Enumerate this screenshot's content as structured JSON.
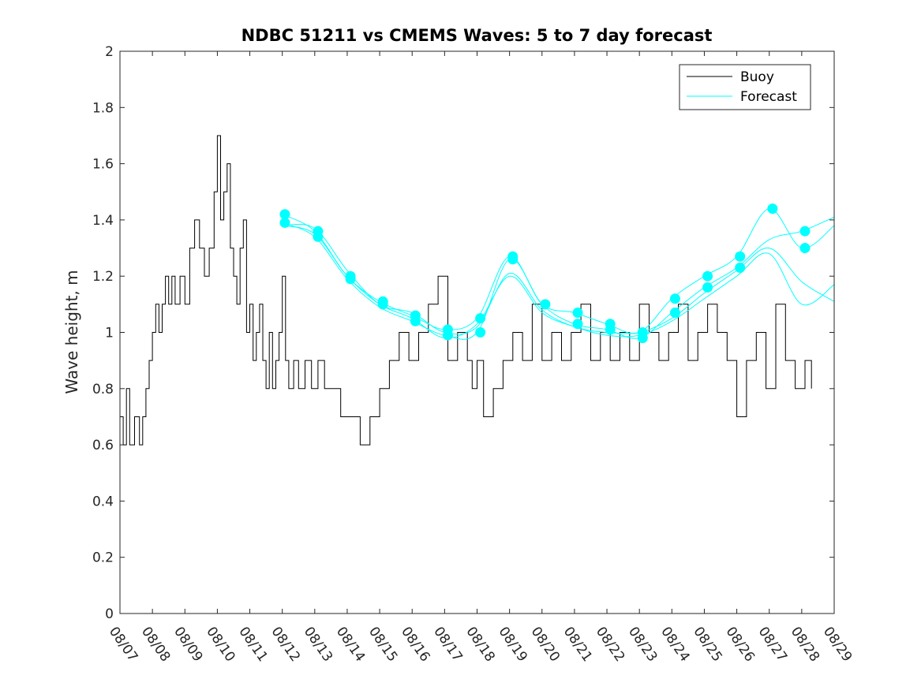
{
  "chart_data": {
    "type": "line",
    "title": "NDBC 51211 vs CMEMS Waves: 5 to 7 day forecast",
    "xlabel": "",
    "ylabel": "Wave height, m",
    "ylim": [
      0,
      2
    ],
    "xlim": [
      0,
      22
    ],
    "yticks": [
      0,
      0.2,
      0.4,
      0.6,
      0.8,
      1,
      1.2,
      1.4,
      1.6,
      1.8,
      2
    ],
    "ytick_labels": [
      "0",
      "0.2",
      "0.4",
      "0.6",
      "0.8",
      "1",
      "1.2",
      "1.4",
      "1.6",
      "1.8",
      "2"
    ],
    "xtick_labels": [
      "08/07",
      "08/08",
      "08/09",
      "08/10",
      "08/11",
      "08/12",
      "08/13",
      "08/14",
      "08/15",
      "08/16",
      "08/17",
      "08/18",
      "08/19",
      "08/20",
      "08/21",
      "08/22",
      "08/23",
      "08/24",
      "08/25",
      "08/26",
      "08/27",
      "08/28",
      "08/29"
    ],
    "legend": {
      "position": "top-right",
      "entries": [
        "Buoy",
        "Forecast"
      ]
    },
    "colors": {
      "buoy": "#000000",
      "forecast": "#00ffff"
    },
    "series": [
      {
        "name": "Buoy",
        "x": [
          0,
          0.1,
          0.2,
          0.3,
          0.45,
          0.6,
          0.7,
          0.8,
          0.9,
          1.0,
          1.1,
          1.2,
          1.3,
          1.4,
          1.5,
          1.6,
          1.7,
          1.85,
          2.0,
          2.15,
          2.3,
          2.45,
          2.6,
          2.75,
          2.9,
          3.0,
          3.1,
          3.2,
          3.3,
          3.4,
          3.5,
          3.6,
          3.7,
          3.8,
          3.9,
          4.0,
          4.1,
          4.2,
          4.3,
          4.4,
          4.5,
          4.6,
          4.7,
          4.8,
          4.9,
          5.0,
          5.1,
          5.2,
          5.35,
          5.5,
          5.7,
          5.9,
          6.1,
          6.3,
          6.5,
          6.8,
          7.1,
          7.4,
          7.7,
          8.0,
          8.3,
          8.6,
          8.9,
          9.2,
          9.5,
          9.8,
          10.1,
          10.4,
          10.7,
          10.85,
          11.0,
          11.2,
          11.5,
          11.8,
          12.1,
          12.4,
          12.7,
          13.0,
          13.3,
          13.6,
          13.9,
          14.2,
          14.5,
          14.8,
          15.1,
          15.4,
          15.7,
          16.0,
          16.3,
          16.6,
          16.9,
          17.2,
          17.5,
          17.8,
          18.1,
          18.4,
          18.7,
          19.0,
          19.3,
          19.6,
          19.9,
          20.2,
          20.5,
          20.8,
          21.1,
          21.3
        ],
        "values": [
          0.7,
          0.6,
          0.8,
          0.6,
          0.7,
          0.6,
          0.7,
          0.8,
          0.9,
          1.0,
          1.1,
          1.0,
          1.1,
          1.2,
          1.1,
          1.2,
          1.1,
          1.2,
          1.1,
          1.3,
          1.4,
          1.3,
          1.2,
          1.3,
          1.5,
          1.7,
          1.4,
          1.5,
          1.6,
          1.3,
          1.2,
          1.1,
          1.3,
          1.4,
          1.0,
          1.1,
          0.9,
          1.0,
          1.1,
          0.9,
          0.8,
          1.0,
          0.8,
          0.9,
          1.0,
          1.2,
          0.9,
          0.8,
          0.9,
          0.8,
          0.9,
          0.8,
          0.9,
          0.8,
          0.8,
          0.7,
          0.7,
          0.6,
          0.7,
          0.8,
          0.9,
          1.0,
          0.9,
          1.0,
          1.1,
          1.2,
          0.9,
          1.0,
          0.9,
          0.8,
          0.9,
          0.7,
          0.8,
          0.9,
          1.0,
          0.9,
          1.1,
          0.9,
          1.0,
          0.9,
          1.0,
          1.1,
          0.9,
          1.0,
          0.9,
          1.0,
          0.9,
          1.1,
          1.0,
          0.9,
          1.0,
          1.1,
          0.9,
          1.0,
          1.1,
          1.0,
          0.9,
          0.7,
          0.9,
          1.0,
          0.8,
          1.1,
          0.9,
          0.8,
          0.9,
          0.8
        ]
      },
      {
        "name": "Forecast",
        "x": [
          5.0,
          6.0,
          7.0,
          8.0,
          9.0,
          10.0,
          11.0,
          12.0,
          13.0,
          14.0,
          15.0,
          16.0,
          17.0,
          18.0,
          19.0,
          20.0,
          21.0,
          22.0
        ],
        "values": [
          1.42,
          1.36,
          1.2,
          1.11,
          1.06,
          1.01,
          1.05,
          1.27,
          1.1,
          1.07,
          1.03,
          1.0,
          1.12,
          1.2,
          1.27,
          1.44,
          1.3,
          1.38
        ]
      },
      {
        "name": "Forecast",
        "x": [
          5.0,
          6.0,
          7.0,
          8.0,
          9.0,
          10.0,
          11.0,
          12.0,
          13.0,
          14.0,
          15.0,
          16.0,
          17.0,
          18.0,
          19.0,
          20.0,
          21.0,
          22.0
        ],
        "values": [
          1.39,
          1.34,
          1.19,
          1.09,
          1.04,
          0.99,
          1.0,
          1.26,
          1.1,
          1.03,
          1.01,
          0.98,
          1.07,
          1.16,
          1.23,
          1.33,
          1.36,
          1.41
        ]
      },
      {
        "name": "Forecast",
        "x": [
          5.0,
          6.0,
          7.0,
          8.0,
          9.0,
          10.0,
          11.0,
          12.0,
          13.0,
          14.0,
          15.0,
          16.0,
          17.0,
          18.0,
          19.0,
          20.0,
          21.0,
          22.0
        ],
        "values": [
          1.38,
          1.37,
          1.22,
          1.1,
          1.07,
          1.0,
          1.02,
          1.21,
          1.08,
          1.02,
          1.0,
          1.0,
          1.05,
          1.14,
          1.22,
          1.3,
          1.18,
          1.11
        ]
      },
      {
        "name": "Forecast",
        "x": [
          5.0,
          6.0,
          7.0,
          8.0,
          9.0,
          10.0,
          11.0,
          12.0,
          13.0,
          14.0,
          15.0,
          16.0,
          17.0,
          18.0,
          19.0,
          20.0,
          21.0,
          22.0
        ],
        "values": [
          1.38,
          1.35,
          1.2,
          1.1,
          1.05,
          0.98,
          1.03,
          1.2,
          1.07,
          1.02,
          0.99,
          0.99,
          1.04,
          1.12,
          1.2,
          1.28,
          1.1,
          1.17
        ]
      }
    ],
    "forecast_markers": {
      "x": [
        5.08,
        5.08,
        6.1,
        6.1,
        7.1,
        7.1,
        8.1,
        8.1,
        9.1,
        9.1,
        10.1,
        10.1,
        11.1,
        11.1,
        12.1,
        12.1,
        13.1,
        14.1,
        14.1,
        15.1,
        15.1,
        16.1,
        16.1,
        17.1,
        17.1,
        18.1,
        18.1,
        19.1,
        19.1,
        20.1,
        21.1,
        21.1
      ],
      "values": [
        1.42,
        1.39,
        1.36,
        1.34,
        1.2,
        1.19,
        1.11,
        1.1,
        1.06,
        1.04,
        1.01,
        0.99,
        1.05,
        1.0,
        1.27,
        1.26,
        1.1,
        1.07,
        1.03,
        1.03,
        1.01,
        1.0,
        0.98,
        1.12,
        1.07,
        1.2,
        1.16,
        1.27,
        1.23,
        1.44,
        1.36,
        1.3
      ]
    }
  }
}
